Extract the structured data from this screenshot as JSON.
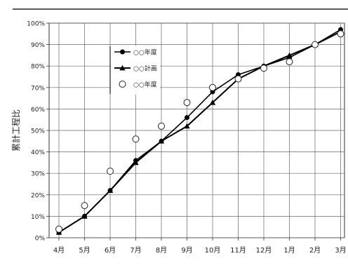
{
  "chart_data": {
    "type": "line",
    "title": "",
    "xlabel": "",
    "ylabel": "累計工程比",
    "categories": [
      "4月",
      "5月",
      "6月",
      "7月",
      "8月",
      "9月",
      "10月",
      "11月",
      "12月",
      "1月",
      "2月",
      "3月"
    ],
    "yticks": [
      "0%",
      "10%",
      "20%",
      "30%",
      "40%",
      "50%",
      "60%",
      "70%",
      "80%",
      "90%",
      "100%"
    ],
    "ylim": [
      0,
      100
    ],
    "grid": true,
    "legend_position": "top-left",
    "series": [
      {
        "name": "○○年度",
        "marker": "filled-circle",
        "color": "#000000",
        "values": [
          2.5,
          10,
          22,
          36,
          45,
          56,
          68,
          76,
          80,
          84,
          90,
          97
        ]
      },
      {
        "name": "○○計画",
        "marker": "filled-triangle",
        "color": "#000000",
        "values": [
          2.5,
          10,
          22,
          35,
          45,
          52,
          63,
          74,
          80,
          85,
          90,
          96
        ]
      },
      {
        "name": "○○年度",
        "marker": "open-circle",
        "color": "#000000",
        "values": [
          4,
          15,
          31,
          46,
          52,
          63,
          70,
          74,
          79,
          82,
          90,
          95
        ]
      }
    ]
  }
}
